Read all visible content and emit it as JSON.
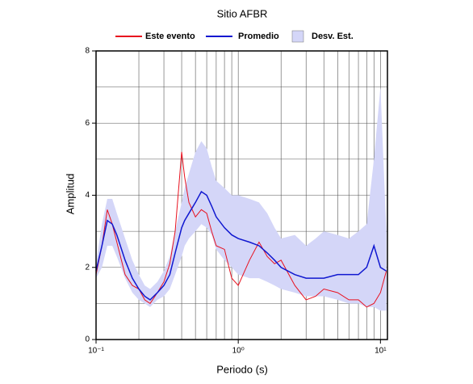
{
  "chart_data": {
    "type": "line",
    "title": "Sitio AFBR",
    "x_label": "Periodo (s)",
    "y_label": "Amplitud",
    "x_scale": "log",
    "grid": true,
    "xlim": [
      0.1,
      11.2
    ],
    "ylim": [
      0,
      8
    ],
    "xticks": [
      {
        "value": 0.1,
        "label": "10⁻¹"
      },
      {
        "value": 1,
        "label": "10⁰"
      },
      {
        "value": 10,
        "label": "10¹"
      }
    ],
    "x_minor_ticks": [
      0.2,
      0.3,
      0.4,
      0.5,
      0.6,
      0.7,
      0.8,
      0.9,
      2,
      3,
      4,
      5,
      6,
      7,
      8,
      9
    ],
    "yticks": [
      0,
      2,
      4,
      6,
      8
    ],
    "y_minor_ticks": [
      1,
      3,
      5,
      7
    ],
    "x": [
      0.1,
      0.11,
      0.12,
      0.13,
      0.14,
      0.16,
      0.18,
      0.2,
      0.22,
      0.24,
      0.27,
      0.3,
      0.33,
      0.36,
      0.4,
      0.42,
      0.45,
      0.5,
      0.55,
      0.6,
      0.65,
      0.7,
      0.8,
      0.9,
      1,
      1.2,
      1.4,
      1.6,
      1.8,
      2,
      2.5,
      3,
      3.5,
      4,
      5,
      6,
      7,
      8,
      9,
      10,
      11
    ],
    "series": [
      {
        "name": "Este evento",
        "color": "#e8101e",
        "values": [
          1.8,
          2.6,
          3.6,
          3.2,
          2.7,
          1.8,
          1.5,
          1.4,
          1.1,
          1.0,
          1.3,
          1.6,
          2.1,
          3.0,
          5.2,
          4.5,
          3.8,
          3.4,
          3.6,
          3.5,
          3.0,
          2.6,
          2.5,
          1.7,
          1.5,
          2.2,
          2.7,
          2.3,
          2.1,
          2.2,
          1.5,
          1.1,
          1.2,
          1.4,
          1.3,
          1.1,
          1.1,
          0.9,
          1.0,
          1.3,
          1.9
        ]
      },
      {
        "name": "Promedio",
        "color": "#1018d0",
        "values": [
          1.9,
          2.6,
          3.3,
          3.2,
          2.9,
          2.2,
          1.7,
          1.4,
          1.2,
          1.1,
          1.3,
          1.5,
          1.8,
          2.4,
          3.1,
          3.3,
          3.5,
          3.8,
          4.1,
          4.0,
          3.7,
          3.4,
          3.1,
          2.9,
          2.8,
          2.7,
          2.6,
          2.4,
          2.2,
          2.0,
          1.8,
          1.7,
          1.7,
          1.7,
          1.8,
          1.8,
          1.8,
          2.0,
          2.6,
          2.0,
          1.9
        ]
      },
      {
        "name": "Desv. Est.",
        "color": "#d4d6f8",
        "upper": [
          2.1,
          3.2,
          3.9,
          3.9,
          3.5,
          2.8,
          2.2,
          1.8,
          1.5,
          1.4,
          1.6,
          1.9,
          2.3,
          3.0,
          3.8,
          4.2,
          4.6,
          5.2,
          5.5,
          5.3,
          4.8,
          4.4,
          4.2,
          4.0,
          4.0,
          3.9,
          3.8,
          3.5,
          3.1,
          2.8,
          2.9,
          2.6,
          2.8,
          3.0,
          2.9,
          2.8,
          3.0,
          3.2,
          5.0,
          7.0,
          3.0
        ],
        "lower": [
          1.7,
          2.0,
          2.6,
          2.6,
          2.3,
          1.7,
          1.3,
          1.1,
          1.0,
          0.9,
          1.1,
          1.2,
          1.4,
          1.8,
          2.3,
          2.6,
          2.8,
          3.0,
          3.2,
          3.1,
          2.9,
          2.5,
          2.2,
          2.0,
          1.8,
          1.7,
          1.7,
          1.6,
          1.5,
          1.4,
          1.3,
          1.2,
          1.2,
          1.2,
          1.1,
          1.0,
          1.0,
          0.9,
          0.9,
          0.8,
          0.8
        ]
      }
    ]
  }
}
